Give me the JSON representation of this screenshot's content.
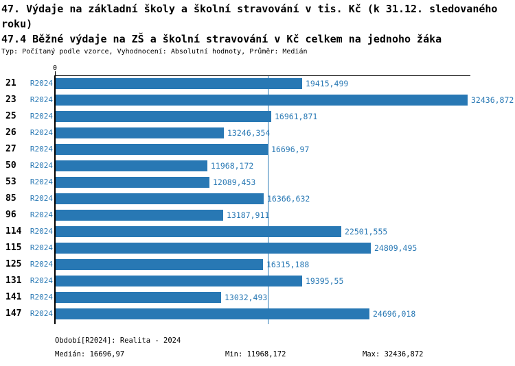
{
  "header": {
    "title_line1": "47. Výdaje na základní školy a školní stravování v tis. Kč (k 31.12. sledovaného",
    "title_line2": "roku)",
    "subtitle": "47.4 Běžné výdaje na ZŠ a školní stravování v Kč celkem na jednoho žáka",
    "meta": "Typ: Počítaný podle vzorce, Vyhodnocení: Absolutní hodnoty, Průměr: Medián"
  },
  "axis": {
    "zero_label": "0"
  },
  "chart_data": {
    "type": "bar",
    "orientation": "horizontal",
    "title": "47.4 Běžné výdaje na ZŠ a školní stravování v Kč celkem na jednoho žáka",
    "categories": [
      "21",
      "23",
      "25",
      "26",
      "27",
      "50",
      "53",
      "85",
      "96",
      "114",
      "115",
      "125",
      "131",
      "141",
      "147"
    ],
    "series": [
      {
        "name": "R2024",
        "values": [
          19415.499,
          32436.872,
          16961.871,
          13246.354,
          16696.97,
          11968.172,
          12089.453,
          16366.632,
          13187.911,
          22501.555,
          24809.495,
          16315.188,
          19395.55,
          13032.493,
          24696.018
        ],
        "value_labels": [
          "19415,499",
          "32436,872",
          "16961,871",
          "13246,354",
          "16696,97",
          "11968,172",
          "12089,453",
          "16366,632",
          "13187,911",
          "22501,555",
          "24809,495",
          "16315,188",
          "19395,55",
          "13032,493",
          "24696,018"
        ]
      }
    ],
    "xlim": [
      0,
      32680
    ],
    "median_value": 16696.97,
    "grid": false,
    "legend_position": "none",
    "xlabel": "",
    "ylabel": ""
  },
  "footer": {
    "period": "Období[R2024]: Realita - 2024",
    "median": "Medián: 16696,97",
    "min": "Min: 11968,172",
    "max": "Max: 32436,872"
  },
  "colors": {
    "bar": "#2878b4",
    "accent_text": "#2878b4",
    "median_line": "#2878b4",
    "axis": "#000000"
  }
}
